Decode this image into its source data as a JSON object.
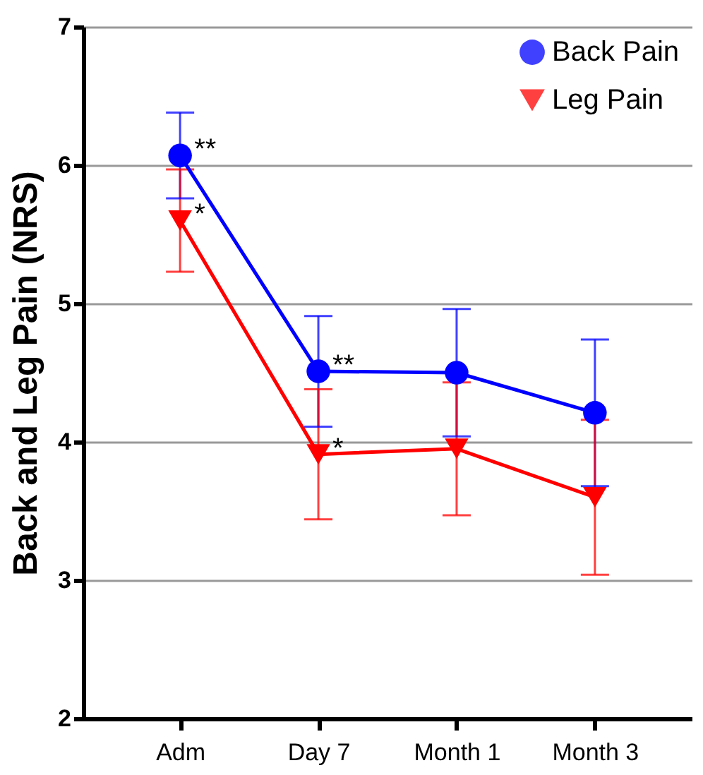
{
  "chart_data": {
    "type": "line",
    "ylabel": "Back and Leg Pain (NRS)",
    "categories": [
      "Adm",
      "Day 7",
      "Month 1",
      "Month 3"
    ],
    "series": [
      {
        "name": "Back Pain",
        "color": "#0000ff",
        "marker": "circle",
        "values": [
          6.07,
          4.51,
          4.5,
          4.21
        ],
        "errors": [
          0.31,
          0.4,
          0.46,
          0.53
        ]
      },
      {
        "name": "Leg Pain",
        "color": "#ff0000",
        "marker": "triangle",
        "values": [
          5.6,
          3.91,
          3.95,
          3.6
        ],
        "errors": [
          0.37,
          0.47,
          0.48,
          0.56
        ]
      }
    ],
    "annotations": [
      {
        "text": "**",
        "x": "Adm",
        "y": 6.07
      },
      {
        "text": "*",
        "x": "Adm",
        "y": 5.6
      },
      {
        "text": "**",
        "x": "Day 7",
        "y": 4.51
      },
      {
        "text": "*",
        "x": "Day 7",
        "y": 3.91
      }
    ],
    "ylim": [
      2,
      7
    ],
    "yticks": [
      2,
      3,
      4,
      5,
      6,
      7
    ],
    "grid": "y",
    "legend": "top right"
  }
}
